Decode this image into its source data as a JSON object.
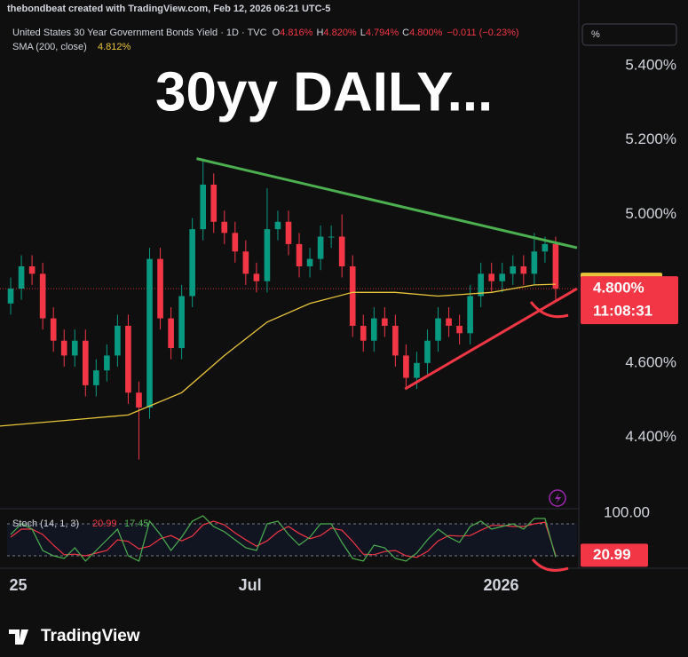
{
  "header": {
    "credit": "thebondbeat created with TradingView.com, Feb 12, 2026 06:21 UTC-5",
    "symbol": "United States 30 Year Government Bonds Yield · 1D · TVC",
    "ohlc": [
      {
        "key": "O",
        "value": "4.816%"
      },
      {
        "key": "H",
        "value": "4.820%"
      },
      {
        "key": "L",
        "value": "4.794%"
      },
      {
        "key": "C",
        "value": "4.800%"
      }
    ],
    "change": "−0.011 (−0.23%)",
    "unit_button": "%"
  },
  "footer": {
    "logo": "TradingView"
  },
  "chart_data": {
    "type": "candlestick",
    "title": "30yy DAILY...",
    "up_color": "#089981",
    "down_color": "#f23645",
    "grid": false,
    "xlim": [
      -1,
      53
    ],
    "ylim": [
      4.21,
      5.51
    ],
    "xticks": [
      {
        "value": 0.7,
        "label": "25"
      },
      {
        "value": 22.4,
        "label": "Jul"
      },
      {
        "value": 45.9,
        "label": "2026"
      }
    ],
    "yticks": [
      {
        "value": 5.4,
        "label": "5.400%"
      },
      {
        "value": 5.2,
        "label": "5.200%"
      },
      {
        "value": 5.0,
        "label": "5.000%"
      },
      {
        "value": 4.6,
        "label": "4.600%"
      },
      {
        "value": 4.4,
        "label": "4.400%"
      }
    ],
    "open": [
      4.76,
      4.8,
      4.86,
      4.84,
      4.72,
      4.66,
      4.62,
      4.66,
      4.54,
      4.58,
      4.62,
      4.7,
      4.52,
      4.48,
      4.88,
      4.72,
      4.64,
      4.78,
      4.96,
      5.08,
      4.98,
      4.95,
      4.9,
      4.84,
      4.82,
      4.96,
      4.98,
      4.92,
      4.86,
      4.88,
      4.94,
      4.94,
      4.86,
      4.7,
      4.66,
      4.72,
      4.7,
      4.62,
      4.56,
      4.6,
      4.66,
      4.72,
      4.7,
      4.68,
      4.78,
      4.84,
      4.82,
      4.84,
      4.86,
      4.84,
      4.9,
      4.92
    ],
    "high": [
      4.83,
      4.89,
      4.89,
      4.87,
      4.75,
      4.69,
      4.69,
      4.69,
      4.61,
      4.65,
      4.73,
      4.73,
      4.55,
      4.91,
      4.91,
      4.75,
      4.81,
      4.99,
      5.15,
      5.11,
      5.01,
      4.98,
      4.93,
      4.87,
      5.07,
      5.01,
      5.01,
      4.95,
      4.91,
      4.97,
      4.97,
      5.0,
      4.89,
      4.73,
      4.75,
      4.75,
      4.73,
      4.65,
      4.63,
      4.69,
      4.75,
      4.75,
      4.73,
      4.81,
      4.87,
      4.87,
      4.87,
      4.89,
      4.89,
      4.95,
      4.94,
      4.94
    ],
    "low": [
      4.73,
      4.77,
      4.81,
      4.69,
      4.63,
      4.59,
      4.59,
      4.51,
      4.51,
      4.55,
      4.59,
      4.49,
      4.34,
      4.45,
      4.69,
      4.61,
      4.61,
      4.75,
      4.93,
      4.95,
      4.92,
      4.87,
      4.81,
      4.79,
      4.79,
      4.93,
      4.89,
      4.83,
      4.83,
      4.85,
      4.91,
      4.83,
      4.67,
      4.63,
      4.63,
      4.67,
      4.59,
      4.53,
      4.53,
      4.57,
      4.63,
      4.67,
      4.65,
      4.65,
      4.75,
      4.79,
      4.79,
      4.81,
      4.81,
      4.81,
      4.87,
      4.77
    ],
    "close": [
      4.8,
      4.86,
      4.84,
      4.72,
      4.66,
      4.62,
      4.66,
      4.54,
      4.58,
      4.62,
      4.7,
      4.52,
      4.48,
      4.88,
      4.72,
      4.64,
      4.78,
      4.96,
      5.08,
      4.98,
      4.95,
      4.9,
      4.84,
      4.82,
      4.96,
      4.98,
      4.92,
      4.86,
      4.88,
      4.94,
      4.94,
      4.86,
      4.7,
      4.66,
      4.72,
      4.7,
      4.62,
      4.56,
      4.6,
      4.66,
      4.72,
      4.7,
      4.68,
      4.78,
      4.84,
      4.82,
      4.84,
      4.86,
      4.84,
      4.9,
      4.92,
      4.8
    ],
    "last_price": {
      "value": 4.8,
      "label": "4.800%",
      "color": "#f23645"
    },
    "countdown": "11:08:31",
    "sma": {
      "name": "SMA (200, close)",
      "color": "#e8c53a",
      "last_label": "4.812%",
      "last": 4.812,
      "x": [
        -1,
        7,
        11,
        16,
        20,
        24,
        28,
        32,
        36,
        40,
        45,
        49,
        51
      ],
      "values": [
        4.43,
        4.45,
        4.46,
        4.52,
        4.62,
        4.71,
        4.76,
        4.79,
        4.79,
        4.78,
        4.79,
        4.81,
        4.812
      ]
    },
    "trendlines": [
      {
        "color": "#4caf50",
        "x": [
          17.4,
          53
        ],
        "y": [
          5.15,
          4.91
        ]
      },
      {
        "color": "#f23645",
        "x": [
          36.9,
          53
        ],
        "y": [
          4.53,
          4.8
        ]
      }
    ],
    "stoch": {
      "name": "Stoch (14, 1, 3)",
      "ylim": [
        0,
        100
      ],
      "yticks": [
        {
          "value": 100,
          "label": "100.00"
        }
      ],
      "bands": [
        80,
        20
      ],
      "series": [
        {
          "color": "#f23645",
          "label": "20.99",
          "values": [
            55,
            70,
            70,
            60,
            40,
            22,
            23,
            20,
            25,
            30,
            50,
            47,
            33,
            38,
            52,
            58,
            48,
            57,
            78,
            85,
            78,
            63,
            50,
            38,
            48,
            65,
            75,
            62,
            52,
            58,
            72,
            68,
            47,
            23,
            22,
            28,
            30,
            20,
            17,
            28,
            48,
            58,
            57,
            58,
            68,
            77,
            77,
            75,
            75,
            80,
            83,
            20.99
          ]
        },
        {
          "color": "#4caf50",
          "label": "17.45",
          "values": [
            60,
            80,
            70,
            30,
            20,
            15,
            35,
            10,
            30,
            50,
            70,
            20,
            10,
            85,
            60,
            30,
            55,
            85,
            95,
            75,
            65,
            50,
            35,
            30,
            80,
            85,
            60,
            40,
            55,
            80,
            80,
            45,
            15,
            10,
            40,
            35,
            15,
            10,
            25,
            50,
            70,
            55,
            45,
            75,
            85,
            70,
            75,
            80,
            70,
            90,
            90,
            17.45
          ]
        }
      ]
    }
  }
}
